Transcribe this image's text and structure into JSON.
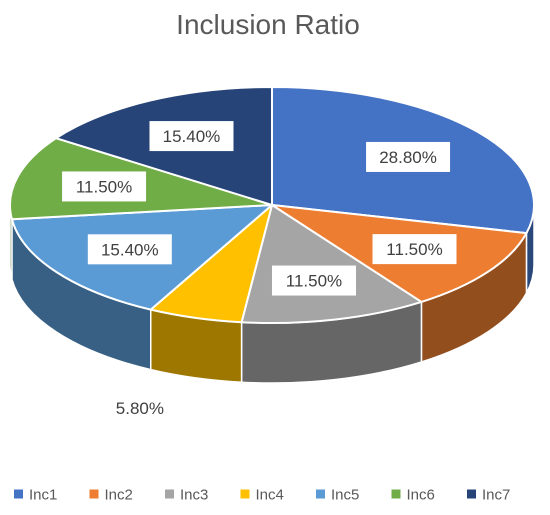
{
  "chart_data": {
    "type": "pie",
    "title": "Inclusion Ratio",
    "categories": [
      "Inc1",
      "Inc2",
      "Inc3",
      "Inc4",
      "Inc5",
      "Inc6",
      "Inc7"
    ],
    "values": [
      28.8,
      11.5,
      11.5,
      5.8,
      15.4,
      11.5,
      15.4
    ],
    "labels": [
      "28.80%",
      "11.50%",
      "11.50%",
      "5.80%",
      "15.40%",
      "11.50%",
      "15.40%"
    ],
    "colors": [
      "#4472C4",
      "#ED7D31",
      "#A5A5A5",
      "#FFC000",
      "#5B9BD5",
      "#70AD47",
      "#264478"
    ],
    "legend_position": "bottom",
    "style": "3d-pie"
  }
}
